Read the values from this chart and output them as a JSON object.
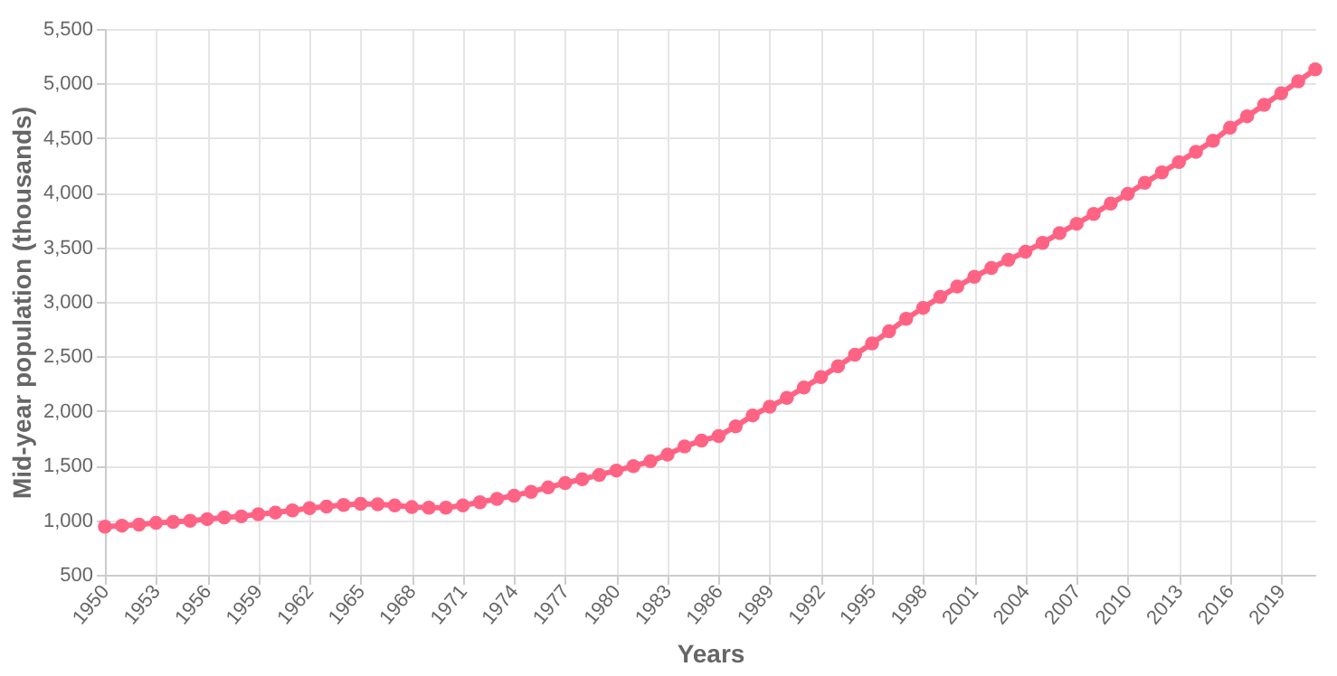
{
  "chart_data": {
    "type": "line",
    "xlabel": "Years",
    "ylabel": "Mid-year population (thousands)",
    "x": [
      1950,
      1951,
      1952,
      1953,
      1954,
      1955,
      1956,
      1957,
      1958,
      1959,
      1960,
      1961,
      1962,
      1963,
      1964,
      1965,
      1966,
      1967,
      1968,
      1969,
      1970,
      1971,
      1972,
      1973,
      1974,
      1975,
      1976,
      1977,
      1978,
      1979,
      1980,
      1981,
      1982,
      1983,
      1984,
      1985,
      1986,
      1987,
      1988,
      1989,
      1990,
      1991,
      1992,
      1993,
      1994,
      1995,
      1996,
      1997,
      1998,
      1999,
      2000,
      2001,
      2002,
      2003,
      2004,
      2005,
      2006,
      2007,
      2008,
      2009,
      2010,
      2011,
      2012,
      2013,
      2014,
      2015,
      2016,
      2017,
      2018,
      2019,
      2020,
      2021
    ],
    "series": [
      {
        "color": "#ff6384",
        "values": [
          940,
          950,
          960,
          975,
          985,
          995,
          1010,
          1025,
          1035,
          1055,
          1070,
          1090,
          1110,
          1125,
          1140,
          1150,
          1145,
          1135,
          1120,
          1115,
          1115,
          1135,
          1165,
          1195,
          1225,
          1260,
          1300,
          1340,
          1375,
          1415,
          1455,
          1495,
          1540,
          1600,
          1675,
          1730,
          1770,
          1860,
          1960,
          2040,
          2120,
          2215,
          2310,
          2410,
          2515,
          2620,
          2730,
          2845,
          2945,
          3045,
          3140,
          3230,
          3310,
          3385,
          3460,
          3540,
          3630,
          3715,
          3805,
          3900,
          3990,
          4090,
          4185,
          4280,
          4375,
          4475,
          4595,
          4700,
          4805,
          4910,
          5020,
          5130
        ]
      }
    ],
    "xlim": [
      1950,
      2021
    ],
    "xticks": [
      1950,
      1953,
      1956,
      1959,
      1962,
      1965,
      1968,
      1971,
      1974,
      1977,
      1980,
      1983,
      1986,
      1989,
      1992,
      1995,
      1998,
      2001,
      2004,
      2007,
      2010,
      2013,
      2016,
      2019
    ],
    "ylim": [
      500,
      5500
    ],
    "yticks": [
      {
        "value": 500,
        "label": "500"
      },
      {
        "value": 1000,
        "label": "1,000"
      },
      {
        "value": 1500,
        "label": "1,500"
      },
      {
        "value": 2000,
        "label": "2,000"
      },
      {
        "value": 2500,
        "label": "2,500"
      },
      {
        "value": 3000,
        "label": "3,000"
      },
      {
        "value": 3500,
        "label": "3,500"
      },
      {
        "value": 4000,
        "label": "4,000"
      },
      {
        "value": 4500,
        "label": "4,500"
      },
      {
        "value": 5000,
        "label": "5,000"
      },
      {
        "value": 5500,
        "label": "5,500"
      }
    ],
    "grid": true,
    "marker": "circle",
    "line_style": "solid"
  }
}
